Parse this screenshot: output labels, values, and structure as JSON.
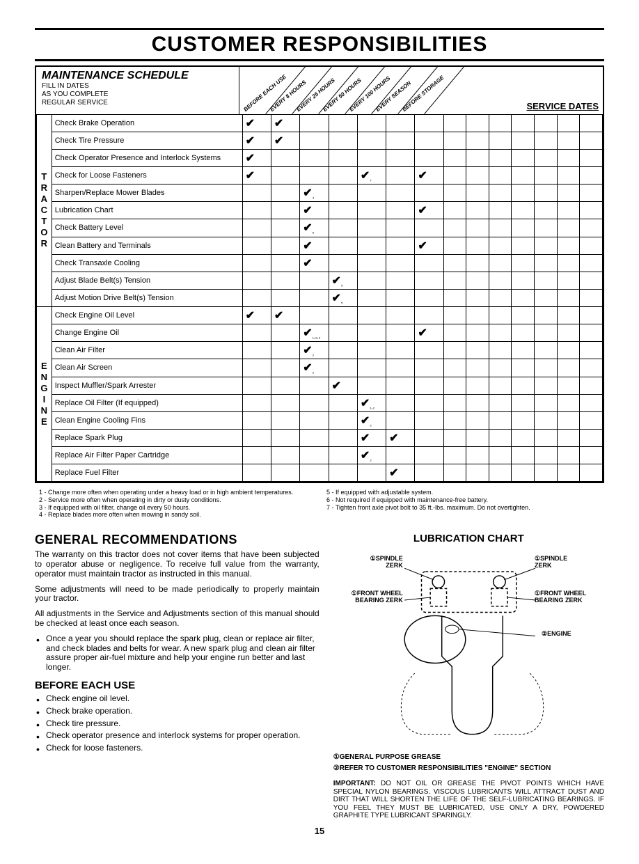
{
  "page_title": "CUSTOMER RESPONSIBILITIES",
  "schedule": {
    "title": "MAINTENANCE SCHEDULE",
    "subtitle": "FILL IN DATES\nAS YOU COMPLETE\nREGULAR SERVICE",
    "interval_headers": [
      "BEFORE EACH USE",
      "EVERY 8 HOURS",
      "EVERY 25 HOURS",
      "EVERY 50 HOURS",
      "EVERY 100 HOURS",
      "EVERY SEASON",
      "BEFORE STORAGE"
    ],
    "service_dates_label": "SERVICE DATES",
    "groups": [
      {
        "category": "TRACTOR",
        "rows": [
          {
            "task": "Check Brake Operation",
            "checks": [
              "✔",
              "✔",
              "",
              "",
              "",
              "",
              ""
            ]
          },
          {
            "task": "Check Tire Pressure",
            "checks": [
              "✔",
              "✔",
              "",
              "",
              "",
              "",
              ""
            ]
          },
          {
            "task": "Check Operator Presence and Interlock Systems",
            "checks": [
              "✔",
              "",
              "",
              "",
              "",
              "",
              ""
            ]
          },
          {
            "task": "Check for Loose Fasteners",
            "checks": [
              "✔",
              "",
              "",
              "",
              "✔₇",
              "",
              "✔"
            ]
          },
          {
            "task": "Sharpen/Replace Mower Blades",
            "checks": [
              "",
              "",
              "✔₄",
              "",
              "",
              "",
              ""
            ]
          },
          {
            "task": "Lubrication Chart",
            "checks": [
              "",
              "",
              "✔",
              "",
              "",
              "",
              "✔"
            ]
          },
          {
            "task": "Check Battery Level",
            "checks": [
              "",
              "",
              "✔₆",
              "",
              "",
              "",
              ""
            ]
          },
          {
            "task": "Clean Battery and Terminals",
            "checks": [
              "",
              "",
              "✔",
              "",
              "",
              "",
              "✔"
            ]
          },
          {
            "task": "Check Transaxle Cooling",
            "checks": [
              "",
              "",
              "✔",
              "",
              "",
              "",
              ""
            ]
          },
          {
            "task": "Adjust Blade Belt(s) Tension",
            "checks": [
              "",
              "",
              "",
              "✔₅",
              "",
              "",
              ""
            ]
          },
          {
            "task": "Adjust Motion Drive Belt(s) Tension",
            "checks": [
              "",
              "",
              "",
              "✔₅",
              "",
              "",
              ""
            ]
          }
        ]
      },
      {
        "category": "ENGINE",
        "rows": [
          {
            "task": "Check Engine Oil Level",
            "checks": [
              "✔",
              "✔",
              "",
              "",
              "",
              "",
              ""
            ]
          },
          {
            "task": "Change Engine Oil",
            "checks": [
              "",
              "",
              "✔₁,₂,₃",
              "",
              "",
              "",
              "✔"
            ]
          },
          {
            "task": "Clean Air Filter",
            "checks": [
              "",
              "",
              "✔₂",
              "",
              "",
              "",
              ""
            ]
          },
          {
            "task": "Clean Air Screen",
            "checks": [
              "",
              "",
              "✔₂",
              "",
              "",
              "",
              ""
            ]
          },
          {
            "task": "Inspect Muffler/Spark Arrester",
            "checks": [
              "",
              "",
              "",
              "✔",
              "",
              "",
              ""
            ]
          },
          {
            "task": "Replace Oil Filter (If equipped)",
            "checks": [
              "",
              "",
              "",
              "",
              "✔₁,₂",
              "",
              ""
            ]
          },
          {
            "task": "Clean Engine Cooling Fins",
            "checks": [
              "",
              "",
              "",
              "",
              "✔₂",
              "",
              ""
            ]
          },
          {
            "task": "Replace Spark Plug",
            "checks": [
              "",
              "",
              "",
              "",
              "✔",
              "✔",
              ""
            ]
          },
          {
            "task": "Replace Air Filter Paper Cartridge",
            "checks": [
              "",
              "",
              "",
              "",
              "✔₂",
              "",
              ""
            ]
          },
          {
            "task": "Replace Fuel Filter",
            "checks": [
              "",
              "",
              "",
              "",
              "",
              "✔",
              ""
            ]
          }
        ]
      }
    ]
  },
  "footnotes_left": [
    "1 - Change more often when operating under a heavy load or in high ambient temperatures.",
    "2 - Service more often when operating in dirty or dusty conditions.",
    "3 - If equipped with oil filter, change oil every 50 hours.",
    "4 - Replace blades more often when mowing in sandy soil."
  ],
  "footnotes_right": [
    "5 - If equipped with adjustable system.",
    "6 - Not required if equipped with maintenance-free battery.",
    "7 - Tighten front axle pivot bolt to 35 ft.-lbs. maximum. Do not overtighten."
  ],
  "general": {
    "title": "GENERAL RECOMMENDATIONS",
    "p1": "The warranty on this tractor does not cover items that have been subjected to operator abuse or negligence. To receive full value from the warranty, operator must maintain tractor as instructed in this manual.",
    "p2": "Some adjustments will need to be made periodically to properly maintain your tractor.",
    "p3": "All adjustments in the Service and Adjustments section of this manual should be checked at least once each season.",
    "bullet": "Once a year you should replace the spark plug, clean or replace air filter, and check blades and belts for wear. A new spark plug and clean air filter assure proper air-fuel mixture and help your engine run better and last longer."
  },
  "before": {
    "title": "BEFORE EACH USE",
    "items": [
      "Check engine oil level.",
      "Check brake operation.",
      "Check tire pressure.",
      "Check operator presence and interlock systems for proper operation.",
      "Check for loose fasteners."
    ]
  },
  "lube": {
    "title": "LUBRICATION CHART",
    "labels": {
      "spindle_l": "①SPINDLE\nZERK",
      "spindle_r": "①SPINDLE\nZERK",
      "wheel_l": "①FRONT WHEEL\nBEARING ZERK",
      "wheel_r": "①FRONT WHEEL\nBEARING ZERK",
      "engine": "②ENGINE"
    },
    "caption1": "①GENERAL PURPOSE GREASE",
    "caption2": "②REFER TO CUSTOMER RESPONSIBILITIES \"ENGINE\" SECTION",
    "important_label": "IMPORTANT:",
    "important": "DO NOT OIL OR GREASE THE PIVOT POINTS WHICH HAVE SPECIAL NYLON BEARINGS. VISCOUS LUBRICANTS WILL ATTRACT DUST AND DIRT THAT WILL SHORTEN THE LIFE OF THE SELF-LUBRICATING BEARINGS. IF YOU FEEL THEY MUST BE LUBRICATED, USE ONLY A DRY, POWDERED GRAPHITE TYPE LUBRICANT SPARINGLY."
  },
  "page_number": "15",
  "colors": {
    "text": "#000000",
    "bg": "#ffffff",
    "watermark": "rgba(100,140,230,0.15)"
  }
}
